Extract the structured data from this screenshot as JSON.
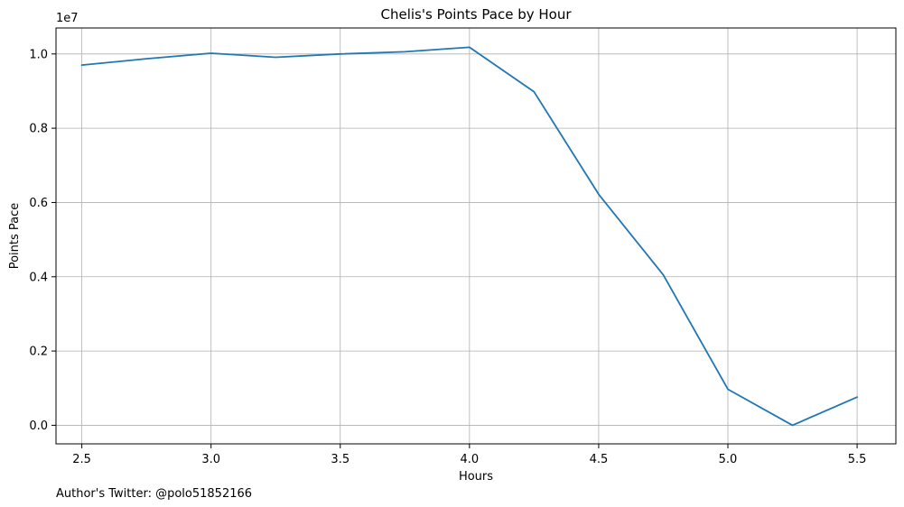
{
  "chart_data": {
    "type": "line",
    "title": "Chelis's Points Pace by Hour",
    "xlabel": "Hours",
    "ylabel": "Points Pace",
    "y_offset_label": "1e7",
    "xlim": [
      2.4,
      5.65
    ],
    "ylim": [
      -0.5,
      10.7
    ],
    "x_ticks": [
      2.5,
      3.0,
      3.5,
      4.0,
      4.5,
      5.0,
      5.5
    ],
    "x_tick_labels": [
      "2.5",
      "3.0",
      "3.5",
      "4.0",
      "4.5",
      "5.0",
      "5.5"
    ],
    "y_ticks": [
      0,
      2,
      4,
      6,
      8,
      10
    ],
    "y_tick_labels": [
      "0.0",
      "0.2",
      "0.4",
      "0.6",
      "0.8",
      "1.0"
    ],
    "grid": true,
    "series": [
      {
        "x": [
          2.5,
          2.75,
          3.0,
          3.25,
          3.5,
          3.75,
          4.0,
          4.25,
          4.5,
          4.75,
          5.0,
          5.25,
          5.5
        ],
        "values": [
          9.7,
          9.87,
          10.02,
          9.91,
          10.0,
          10.06,
          10.18,
          8.98,
          6.22,
          4.05,
          0.97,
          0.0,
          0.76
        ],
        "color": "#1f77b4"
      }
    ]
  },
  "footer_text": "Author's Twitter: @polo51852166"
}
